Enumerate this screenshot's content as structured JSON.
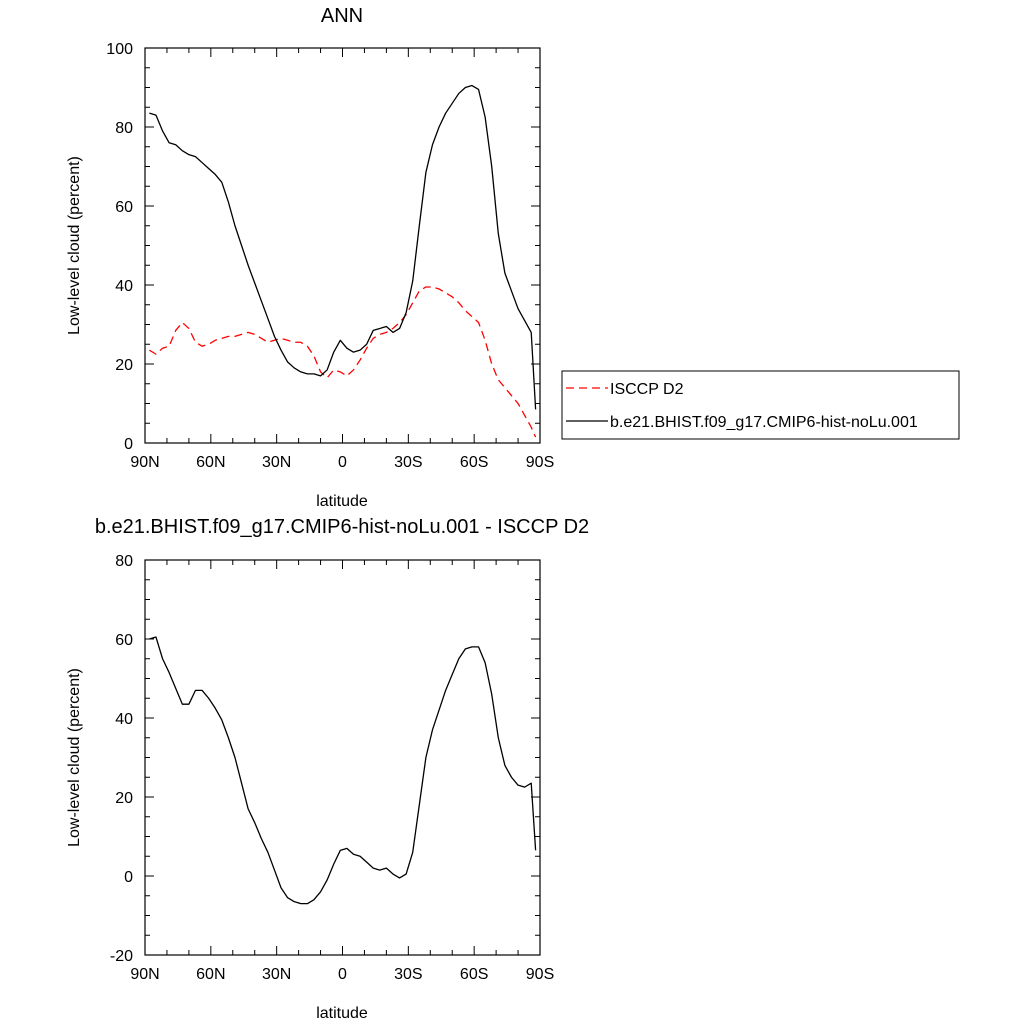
{
  "chart_data": [
    {
      "type": "line",
      "title": "ANN",
      "xlabel": "latitude",
      "ylabel": "Low-level cloud (percent)",
      "xlim": [
        90,
        -90
      ],
      "ylim": [
        0,
        100
      ],
      "x_ticks": [
        90,
        60,
        30,
        0,
        -30,
        -60,
        -90
      ],
      "x_tick_labels": [
        "90N",
        "60N",
        "30N",
        "0",
        "30S",
        "60S",
        "90S"
      ],
      "y_ticks": [
        0,
        20,
        40,
        60,
        80,
        100
      ],
      "y_tick_labels": [
        "0",
        "20",
        "40",
        "60",
        "80",
        "100"
      ],
      "grid": false,
      "legend": "right",
      "series": [
        {
          "name": "ISCCP D2",
          "color": "#ff0000",
          "dash": "dashed",
          "x": [
            88,
            85,
            82,
            79,
            76,
            73,
            70,
            67,
            64,
            61,
            58,
            55,
            52,
            49,
            46,
            43,
            40,
            37,
            34,
            31,
            28,
            25,
            22,
            19,
            16,
            13,
            10,
            7,
            4,
            1,
            -2,
            -5,
            -8,
            -11,
            -14,
            -17,
            -20,
            -23,
            -26,
            -29,
            -32,
            -35,
            -38,
            -41,
            -44,
            -47,
            -50,
            -53,
            -56,
            -59,
            -62,
            -65,
            -68,
            -71,
            -74,
            -77,
            -80,
            -83,
            -86,
            -88
          ],
          "y": [
            23.5,
            22.5,
            24,
            24.5,
            28.5,
            30.5,
            29,
            25.5,
            24.5,
            25,
            26,
            26.5,
            27,
            27,
            27.5,
            28,
            27.5,
            26.5,
            25.5,
            26,
            26.5,
            26,
            25.5,
            25.5,
            24.5,
            22,
            18,
            16.5,
            18.5,
            18,
            17,
            18.5,
            21,
            24,
            26.5,
            27.5,
            28,
            29,
            30.5,
            32.5,
            35.5,
            38.5,
            39.5,
            39.5,
            39,
            38,
            37,
            35.5,
            33.5,
            32,
            30.5,
            26,
            20,
            16,
            14,
            12,
            10,
            7,
            4,
            1.5
          ]
        },
        {
          "name": "b.e21.BHIST.f09_g17.CMIP6-hist-noLu.001",
          "color": "#000000",
          "dash": "solid",
          "x": [
            88,
            85,
            82,
            79,
            76,
            73,
            70,
            67,
            64,
            61,
            58,
            55,
            52,
            49,
            46,
            43,
            40,
            37,
            34,
            31,
            28,
            25,
            22,
            19,
            16,
            13,
            10,
            7,
            4,
            1,
            -2,
            -5,
            -8,
            -11,
            -14,
            -17,
            -20,
            -23,
            -26,
            -29,
            -32,
            -35,
            -38,
            -41,
            -44,
            -47,
            -50,
            -53,
            -56,
            -59,
            -62,
            -65,
            -68,
            -71,
            -74,
            -77,
            -80,
            -83,
            -86,
            -88
          ],
          "y": [
            83.5,
            83,
            79,
            76,
            75.5,
            74,
            73,
            72.5,
            71,
            69.5,
            68,
            66,
            61,
            55,
            50,
            45,
            40.5,
            36,
            31.5,
            27,
            23.5,
            20.5,
            19,
            18,
            17.5,
            17.5,
            17,
            18.5,
            23,
            26,
            24,
            23,
            23.5,
            25,
            28.5,
            29,
            29.5,
            28,
            29,
            33,
            41,
            55,
            68.5,
            75.5,
            80,
            83.5,
            86,
            88.5,
            90,
            90.5,
            89.5,
            82.5,
            70,
            53,
            43,
            38.5,
            34,
            31,
            28,
            8.5
          ]
        }
      ]
    },
    {
      "type": "line",
      "title": "b.e21.BHIST.f09_g17.CMIP6-hist-noLu.001 - ISCCP D2",
      "xlabel": "latitude",
      "ylabel": "Low-level cloud (percent)",
      "xlim": [
        90,
        -90
      ],
      "ylim": [
        -20,
        80
      ],
      "x_ticks": [
        90,
        60,
        30,
        0,
        -30,
        -60,
        -90
      ],
      "x_tick_labels": [
        "90N",
        "60N",
        "30N",
        "0",
        "30S",
        "60S",
        "90S"
      ],
      "y_ticks": [
        -20,
        0,
        20,
        40,
        60,
        80
      ],
      "y_tick_labels": [
        "-20",
        "0",
        "20",
        "40",
        "60",
        "80"
      ],
      "grid": false,
      "series": [
        {
          "color": "#000000",
          "dash": "solid",
          "x": [
            88,
            85,
            82,
            79,
            76,
            73,
            70,
            67,
            64,
            61,
            58,
            55,
            52,
            49,
            46,
            43,
            40,
            37,
            34,
            31,
            28,
            25,
            22,
            19,
            16,
            13,
            10,
            7,
            4,
            1,
            -2,
            -5,
            -8,
            -11,
            -14,
            -17,
            -20,
            -23,
            -26,
            -29,
            -32,
            -35,
            -38,
            -41,
            -44,
            -47,
            -50,
            -53,
            -56,
            -59,
            -62,
            -65,
            -68,
            -71,
            -74,
            -77,
            -80,
            -83,
            -86,
            -88
          ],
          "y": [
            60,
            60.5,
            55,
            51.5,
            47.5,
            43.5,
            43.5,
            47,
            47,
            45,
            42.5,
            39.5,
            35,
            30,
            23.5,
            17,
            13.5,
            9.5,
            6,
            1.5,
            -3,
            -5.5,
            -6.5,
            -7,
            -7,
            -6,
            -4,
            -1,
            3,
            6.5,
            7,
            5.5,
            5,
            3.5,
            2,
            1.5,
            2,
            0.5,
            -0.5,
            0.5,
            6,
            18,
            30,
            37,
            42,
            47,
            51,
            55,
            57.5,
            58,
            58,
            54,
            46,
            35,
            28,
            25,
            23,
            22.5,
            23.5,
            6.5
          ]
        }
      ]
    }
  ]
}
